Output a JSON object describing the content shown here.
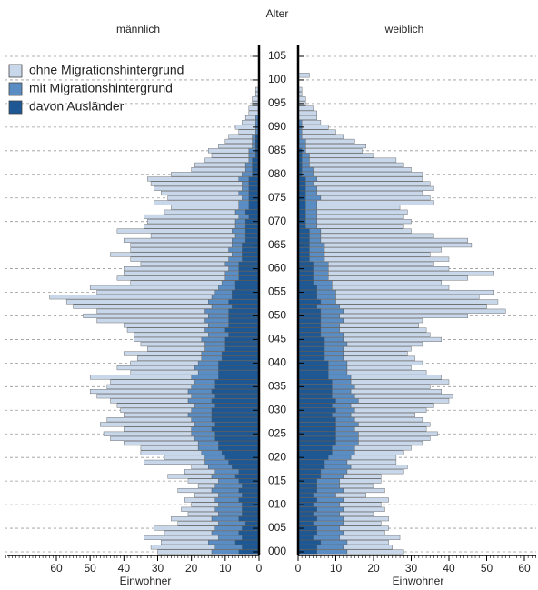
{
  "chart_data": {
    "type": "population-pyramid",
    "title": "Alter",
    "ylim": [
      0,
      105
    ],
    "yticks": [
      {
        "value": 0,
        "label": "000"
      },
      {
        "value": 5,
        "label": "005"
      },
      {
        "value": 10,
        "label": "010"
      },
      {
        "value": 15,
        "label": "015"
      },
      {
        "value": 20,
        "label": "020"
      },
      {
        "value": 25,
        "label": "025"
      },
      {
        "value": 30,
        "label": "030"
      },
      {
        "value": 35,
        "label": "035"
      },
      {
        "value": 40,
        "label": "040"
      },
      {
        "value": 45,
        "label": "045"
      },
      {
        "value": 50,
        "label": "050"
      },
      {
        "value": 55,
        "label": "055"
      },
      {
        "value": 60,
        "label": "060"
      },
      {
        "value": 65,
        "label": "065"
      },
      {
        "value": 70,
        "label": "070"
      },
      {
        "value": 75,
        "label": "075"
      },
      {
        "value": 80,
        "label": "080"
      },
      {
        "value": 85,
        "label": "085"
      },
      {
        "value": 90,
        "label": "090"
      },
      {
        "value": 95,
        "label": "095"
      },
      {
        "value": 100,
        "label": "100"
      },
      {
        "value": 105,
        "label": "105"
      }
    ],
    "grid": true,
    "legend": [
      {
        "name": "ohne Migrationshintergrund",
        "color": "#c9d7ea"
      },
      {
        "name": "mit Migrationshintergrund",
        "color": "#5a8dc3"
      },
      {
        "name": "davon Ausländer",
        "color": "#1d5894"
      }
    ],
    "panels": [
      {
        "title": "männlich",
        "xlabel": "Einwohner",
        "xlim": [
          0,
          60
        ],
        "xticks": [
          0,
          10,
          20,
          30,
          40,
          50,
          60
        ],
        "series": [
          {
            "values": [
              16,
              19,
              14,
              22,
              14,
              18,
              12,
              12,
              9,
              10,
              8,
              9,
              7,
              10,
              5,
              9,
              13,
              9,
              5,
              18,
              12,
              18,
              17,
              22,
              25,
              26,
              20,
              28,
              25,
              19,
              21,
              23,
              23,
              28,
              29,
              25,
              25,
              30,
              20,
              23,
              20,
              19,
              23,
              17,
              19,
              20,
              22,
              23,
              25,
              32,
              37,
              32,
              41,
              42,
              48,
              35,
              38,
              27,
              32,
              30,
              31,
              25,
              29,
              36,
              29,
              30,
              32,
              25,
              34,
              27,
              26,
              28,
              21,
              20,
              25,
              22,
              23,
              26,
              27,
              27,
              21,
              16,
              15,
              13,
              11,
              12,
              10,
              8,
              7,
              5,
              6,
              4,
              3,
              3,
              3,
              2,
              2,
              1,
              1,
              0,
              0,
              0,
              0,
              0,
              0,
              0
            ]
          },
          {
            "values": [
              14,
              13,
              15,
              12,
              14,
              13,
              12,
              14,
              12,
              13,
              12,
              13,
              12,
              14,
              13,
              12,
              14,
              13,
              15,
              16,
              16,
              17,
              18,
              18,
              19,
              20,
              20,
              19,
              20,
              21,
              20,
              19,
              21,
              20,
              21,
              20,
              19,
              20,
              18,
              19,
              18,
              17,
              17,
              16,
              16,
              17,
              15,
              16,
              15,
              16,
              15,
              16,
              14,
              15,
              14,
              13,
              12,
              11,
              10,
              10,
              9,
              10,
              9,
              8,
              9,
              8,
              8,
              7,
              8,
              7,
              7,
              6,
              7,
              6,
              6,
              5,
              6,
              5,
              5,
              6,
              5,
              4,
              4,
              3,
              3,
              3,
              2,
              2,
              2,
              1,
              1,
              1,
              1,
              0,
              0,
              0,
              0,
              0,
              0,
              0,
              0,
              0,
              0,
              0,
              0,
              0
            ]
          },
          {
            "values": [
              6,
              5,
              7,
              5,
              6,
              5,
              4,
              6,
              5,
              5,
              5,
              6,
              5,
              6,
              5,
              6,
              7,
              6,
              8,
              9,
              10,
              11,
              12,
              12,
              13,
              13,
              14,
              13,
              14,
              14,
              14,
              13,
              14,
              13,
              14,
              13,
              13,
              12,
              12,
              12,
              12,
              11,
              11,
              10,
              10,
              10,
              9,
              10,
              9,
              9,
              9,
              9,
              8,
              9,
              8,
              8,
              7,
              7,
              6,
              6,
              6,
              6,
              5,
              5,
              5,
              5,
              4,
              4,
              4,
              4,
              4,
              3,
              4,
              3,
              3,
              3,
              3,
              3,
              3,
              3,
              2,
              2,
              2,
              2,
              1,
              1,
              1,
              1,
              1,
              0,
              0,
              0,
              0,
              0,
              0,
              0,
              0,
              0,
              0,
              0,
              0,
              0,
              0,
              0,
              0,
              0
            ]
          }
        ]
      },
      {
        "title": "weiblich",
        "xlabel": "Einwohner",
        "xlim": [
          0,
          60
        ],
        "xticks": [
          0,
          10,
          20,
          30,
          40,
          50,
          60
        ],
        "series": [
          {
            "values": [
              15,
              13,
              11,
              16,
              11,
              13,
              10,
              12,
              9,
              11,
              11,
              12,
              8,
              11,
              9,
              11,
              10,
              15,
              15,
              13,
              12,
              13,
              15,
              17,
              19,
              21,
              19,
              19,
              18,
              17,
              19,
              22,
              24,
              26,
              24,
              20,
              26,
              24,
              21,
              17,
              20,
              19,
              17,
              18,
              20,
              26,
              23,
              23,
              21,
              21,
              34,
              43,
              39,
              43,
              38,
              42,
              31,
              29,
              37,
              44,
              32,
              28,
              33,
              28,
              31,
              39,
              39,
              30,
              24,
              23,
              25,
              23,
              24,
              22,
              31,
              29,
              28,
              31,
              31,
              28,
              29,
              26,
              25,
              23,
              17,
              15,
              16,
              13,
              11,
              9,
              7,
              5,
              5,
              5,
              4,
              2,
              2,
              1,
              1,
              0,
              0,
              3,
              0,
              0,
              0,
              0
            ]
          },
          {
            "values": [
              13,
              12,
              13,
              11,
              12,
              11,
              12,
              12,
              11,
              12,
              11,
              12,
              10,
              12,
              11,
              11,
              12,
              13,
              14,
              13,
              14,
              15,
              15,
              16,
              16,
              16,
              15,
              16,
              15,
              14,
              15,
              14,
              16,
              15,
              14,
              15,
              14,
              14,
              13,
              13,
              13,
              12,
              12,
              12,
              13,
              12,
              12,
              11,
              11,
              12,
              11,
              12,
              11,
              10,
              10,
              10,
              9,
              9,
              8,
              8,
              8,
              8,
              7,
              7,
              7,
              7,
              6,
              6,
              6,
              5,
              5,
              5,
              5,
              5,
              5,
              6,
              5,
              5,
              4,
              5,
              4,
              4,
              3,
              3,
              3,
              2,
              2,
              2,
              1,
              1,
              1,
              1,
              0,
              0,
              0,
              0,
              0,
              0,
              0,
              0,
              0,
              0,
              0,
              0,
              0,
              0
            ]
          },
          {
            "values": [
              5,
              5,
              6,
              4,
              5,
              5,
              4,
              5,
              4,
              5,
              4,
              5,
              4,
              5,
              5,
              5,
              6,
              6,
              7,
              7,
              8,
              9,
              9,
              10,
              10,
              10,
              10,
              10,
              10,
              9,
              10,
              9,
              10,
              9,
              9,
              9,
              9,
              8,
              8,
              8,
              8,
              7,
              7,
              7,
              7,
              7,
              6,
              6,
              6,
              6,
              6,
              6,
              5,
              6,
              5,
              5,
              5,
              4,
              4,
              4,
              4,
              4,
              3,
              3,
              3,
              3,
              3,
              3,
              3,
              2,
              2,
              2,
              2,
              2,
              2,
              2,
              2,
              2,
              2,
              2,
              1,
              1,
              1,
              1,
              1,
              1,
              0,
              0,
              0,
              0,
              0,
              0,
              0,
              0,
              0,
              0,
              0,
              0,
              0,
              0,
              0,
              0,
              0,
              0,
              0,
              0
            ]
          }
        ]
      }
    ]
  }
}
